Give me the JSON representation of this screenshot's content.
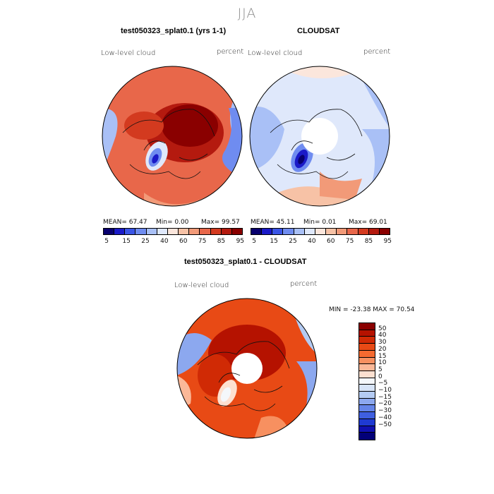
{
  "season": "JJA",
  "panels": [
    {
      "title": "test050323_splat0.1 (yrs 1-1)",
      "field": "Low-level cloud",
      "units": "percent",
      "stats": {
        "mean": "MEAN=  67.47",
        "min": "Min=   0.00",
        "max": "Max=  99.57"
      }
    },
    {
      "title": "CLOUDSAT",
      "field": "Low-level cloud",
      "units": "percent",
      "stats": {
        "mean": "MEAN=  45.11",
        "min": "Min=   0.01",
        "max": "Max=  69.01"
      }
    },
    {
      "title": "test050323_splat0.1 - CLOUDSAT",
      "field": "Low-level cloud",
      "units": "percent",
      "stats": {
        "minmax": "MIN = -23.38 MAX =  70.54"
      }
    }
  ],
  "colorbar_abs": {
    "colors": [
      "#08006e",
      "#1a1ac8",
      "#3a55e6",
      "#6f8cf0",
      "#a9c0f6",
      "#dfe8fb",
      "#fbe6dc",
      "#f7c2a6",
      "#f29a78",
      "#e8674a",
      "#d33a1f",
      "#b41a0f",
      "#8a0000"
    ],
    "labels": [
      "5",
      "15",
      "25",
      "40",
      "60",
      "75",
      "85",
      "95"
    ]
  },
  "colorbar_diff": {
    "colors": [
      "#8a0000",
      "#b51200",
      "#d02a05",
      "#e84a15",
      "#f46a30",
      "#f79060",
      "#fbb898",
      "#fde0d0",
      "#f4f7fb",
      "#d7e4f8",
      "#b4cbf3",
      "#8ca8ef",
      "#6585e9",
      "#3f5fe0",
      "#1f3ad2",
      "#1010b0",
      "#020078"
    ],
    "labels": [
      "50",
      "40",
      "30",
      "20",
      "15",
      "10",
      "5",
      "0",
      "−5",
      "−10",
      "−15",
      "−20",
      "−30",
      "−40",
      "−50"
    ]
  }
}
